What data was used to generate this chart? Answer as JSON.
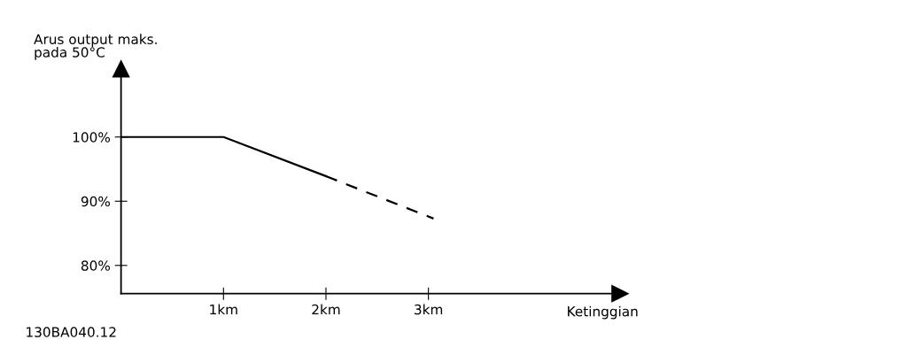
{
  "chart_data": {
    "type": "line",
    "ylabel": "Arus output maks.\npada 50°C",
    "xlabel": "Ketinggian",
    "annotations": [
      "130BA040.12"
    ],
    "xlim": [
      0,
      4.87
    ],
    "ylim": [
      75.6,
      110.6
    ],
    "xticks": [
      {
        "value": 1,
        "label": "1km"
      },
      {
        "value": 2,
        "label": "2km"
      },
      {
        "value": 3,
        "label": "3km"
      }
    ],
    "yticks": [
      {
        "value": 80,
        "label": "80%"
      },
      {
        "value": 90,
        "label": "90%"
      },
      {
        "value": 100,
        "label": "100%"
      }
    ],
    "grid": false,
    "legend": false,
    "marker": "none",
    "series": [
      {
        "color": "#000000",
        "line_style": "solid",
        "x": [
          0,
          1,
          2
        ],
        "values": [
          100,
          100,
          93.9
        ]
      },
      {
        "color": "#000000",
        "line_style": "dashed",
        "x": [
          2,
          3.05
        ],
        "values": [
          93.9,
          87.3
        ]
      }
    ]
  }
}
